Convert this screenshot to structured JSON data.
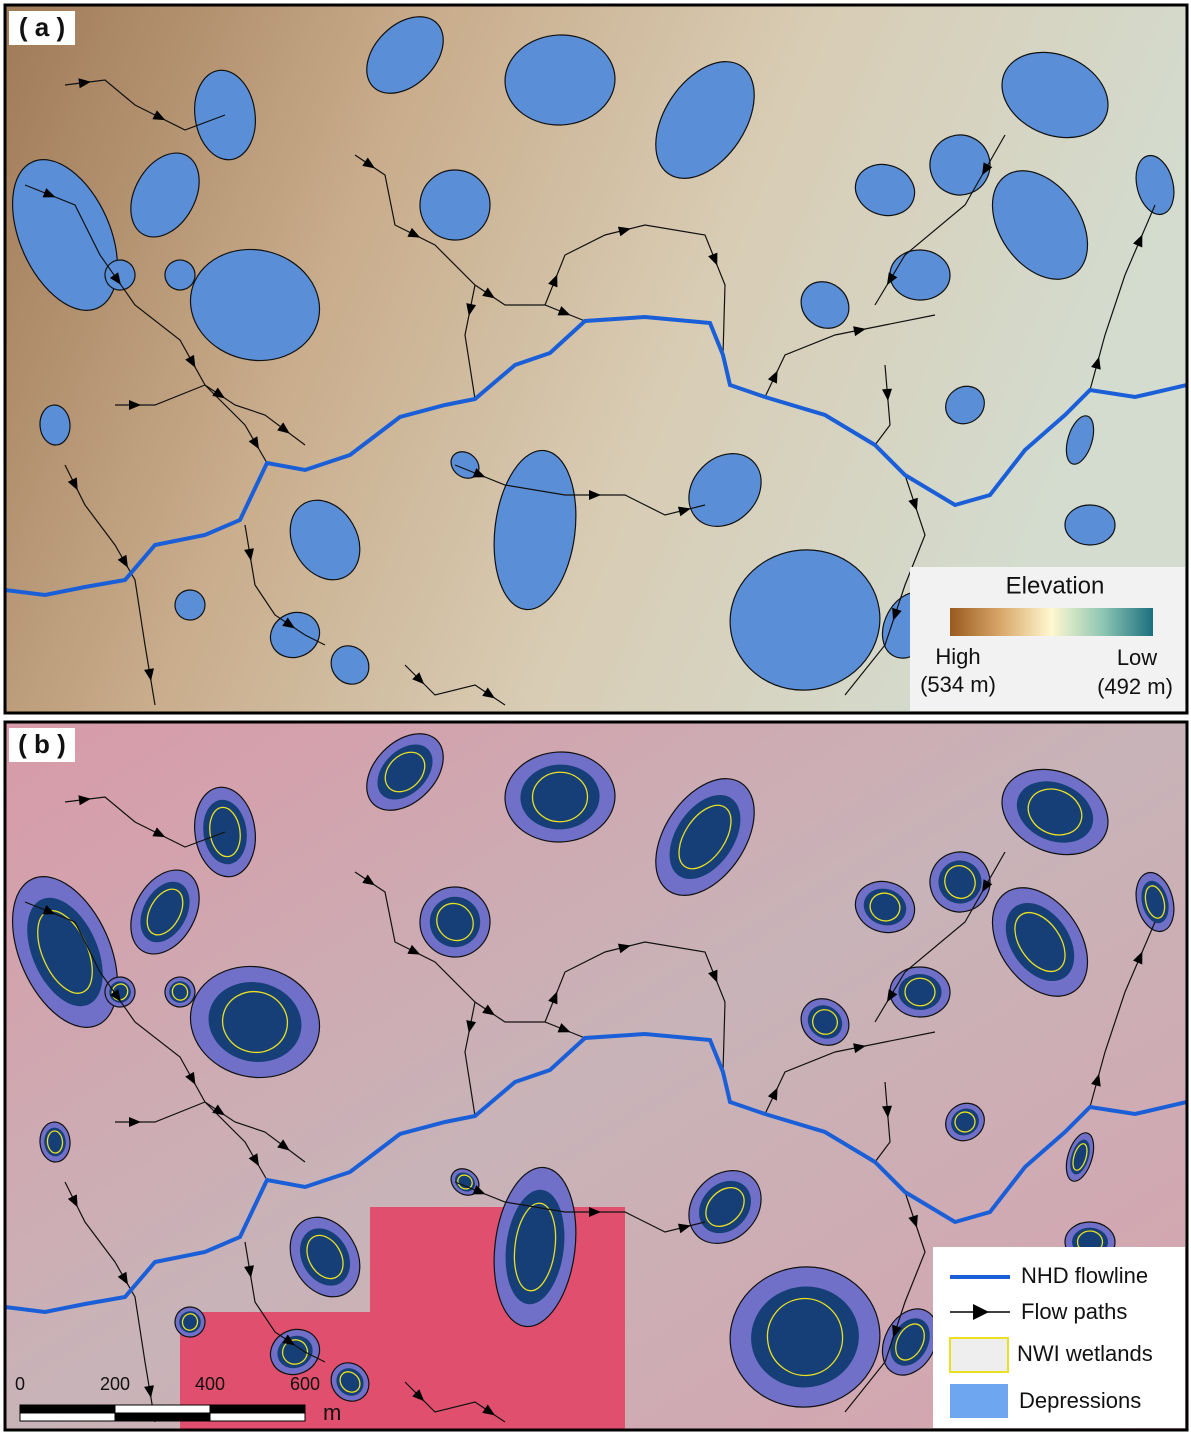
{
  "panels": [
    {
      "label": "( a )",
      "legend": {
        "title": "Elevation",
        "high": "High",
        "high_value": "(534 m)",
        "low": "Low",
        "low_value": "(492 m)"
      }
    },
    {
      "label": "( b )",
      "legend": {
        "items": [
          "NHD flowline",
          "Flow paths",
          "NWI wetlands",
          "Depressions"
        ]
      },
      "scale_bar": {
        "ticks": [
          0,
          200,
          400,
          600
        ],
        "unit": "m"
      }
    }
  ]
}
